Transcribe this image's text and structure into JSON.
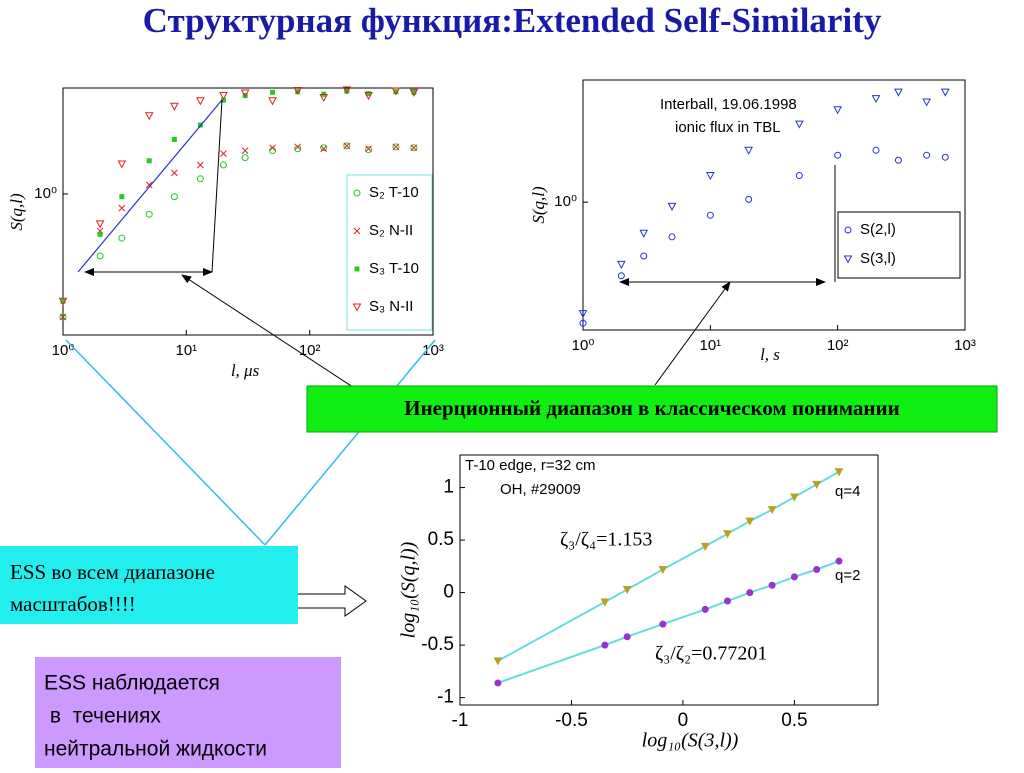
{
  "title": "Структурная функция:Extended Self-Similarity",
  "chart_data": [
    {
      "type": "scatter",
      "xlog": true,
      "ylog": true,
      "ylabel": "S(q,l)",
      "xlabel": "l, μs",
      "xlim": [
        1,
        1000
      ],
      "ylim": [
        0.35,
        2.2
      ],
      "xticks": [
        {
          "value": 1,
          "label": "10⁰"
        },
        {
          "value": 10,
          "label": "10¹"
        },
        {
          "value": 100,
          "label": "10²"
        },
        {
          "value": 1000,
          "label": "10³"
        }
      ],
      "yticks": [
        {
          "value": 1,
          "label": "10⁰"
        }
      ],
      "x": [
        1,
        2,
        3,
        5,
        8,
        13,
        20,
        30,
        50,
        80,
        130,
        200,
        300,
        500,
        700
      ],
      "series": [
        {
          "name": "S₂ T-10",
          "color": "#22cc22",
          "marker": "circle",
          "values": [
            0.4,
            0.63,
            0.72,
            0.86,
            0.98,
            1.12,
            1.24,
            1.31,
            1.38,
            1.4,
            1.41,
            1.43,
            1.39,
            1.42,
            1.41
          ]
        },
        {
          "name": "S₂ N-II",
          "color": "#dd2222",
          "marker": "x",
          "values": [
            0.4,
            0.76,
            0.9,
            1.07,
            1.17,
            1.24,
            1.35,
            1.38,
            1.41,
            1.42,
            1.4,
            1.43,
            1.4,
            1.42,
            1.41
          ]
        },
        {
          "name": "S₃ T-10",
          "color": "#22cc22",
          "marker": "square",
          "values": [
            0.45,
            0.74,
            0.98,
            1.28,
            1.5,
            1.67,
            2.01,
            2.08,
            2.13,
            2.14,
            2.1,
            2.15,
            2.11,
            2.14,
            2.13
          ]
        },
        {
          "name": "S₃ N-II",
          "color": "#dd2222",
          "marker": "triangle",
          "values": [
            0.45,
            0.8,
            1.25,
            1.79,
            1.92,
            2.0,
            2.08,
            2.12,
            2.0,
            2.16,
            2.05,
            2.17,
            2.08,
            2.15,
            2.13
          ]
        }
      ]
    },
    {
      "type": "scatter",
      "xlog": true,
      "ylog": true,
      "ylabel": "S(q,l)",
      "xlabel": "l, s",
      "xlim": [
        1,
        1000
      ],
      "ylim": [
        0.4,
        2.4
      ],
      "xticks": [
        {
          "value": 1,
          "label": "10⁰"
        },
        {
          "value": 10,
          "label": "10¹"
        },
        {
          "value": 100,
          "label": "10²"
        },
        {
          "value": 1000,
          "label": "10³"
        }
      ],
      "yticks": [
        {
          "value": 1,
          "label": "10⁰"
        }
      ],
      "annotations": [
        "Interball, 19.06.1998",
        "ionic flux in TBL"
      ],
      "x": [
        1,
        2,
        3,
        5,
        10,
        20,
        50,
        100,
        200,
        300,
        500,
        700
      ],
      "series": [
        {
          "name": "S(2,l)",
          "color": "#2233dd",
          "marker": "circle",
          "values": [
            0.42,
            0.59,
            0.68,
            0.78,
            0.91,
            1.02,
            1.21,
            1.4,
            1.45,
            1.35,
            1.4,
            1.38
          ]
        },
        {
          "name": "S(3,l)",
          "color": "#2233dd",
          "marker": "triangle",
          "values": [
            0.45,
            0.64,
            0.8,
            0.97,
            1.21,
            1.45,
            1.75,
            1.94,
            2.1,
            2.2,
            2.05,
            2.2
          ]
        }
      ]
    },
    {
      "type": "scatter",
      "ylabel": "log₁₀(S(q,l))",
      "xlabel": "log₁₀(S(3,l))",
      "xlim": [
        -1,
        0.875
      ],
      "ylim": [
        -1.07,
        1.31
      ],
      "xticks": [
        -1,
        -0.5,
        0,
        0.5
      ],
      "yticks": [
        -1,
        -0.5,
        0,
        0.5,
        1
      ],
      "annotations": [
        "T-10 edge, r=32 cm",
        "OH, #29009",
        "q=4",
        "q=2",
        "ζ₃/ζ₄=1.153",
        "ζ₃/ζ₂=0.77201"
      ],
      "x": [
        -0.83,
        -0.35,
        -0.25,
        -0.09,
        0.1,
        0.2,
        0.3,
        0.4,
        0.5,
        0.6,
        0.7
      ],
      "series": [
        {
          "name": "q=4",
          "color": "#b8a020",
          "marker": "triangle",
          "values": [
            -0.65,
            -0.09,
            0.03,
            0.22,
            0.44,
            0.56,
            0.68,
            0.79,
            0.91,
            1.03,
            1.15
          ]
        },
        {
          "name": "q=2",
          "color": "#9933cc",
          "marker": "circle",
          "values": [
            -0.86,
            -0.5,
            -0.42,
            -0.3,
            -0.16,
            -0.08,
            0.0,
            0.07,
            0.15,
            0.22,
            0.3
          ]
        }
      ]
    }
  ],
  "boxes": {
    "inertial": "Инерционный диапазон в классическом понимании",
    "ess_all": [
      "ESS во всем диапазоне",
      "масштабов!!!!"
    ],
    "ess_fluid": [
      "ESS наблюдается",
      " в  течениях",
      "нейтральной жидкости"
    ]
  }
}
